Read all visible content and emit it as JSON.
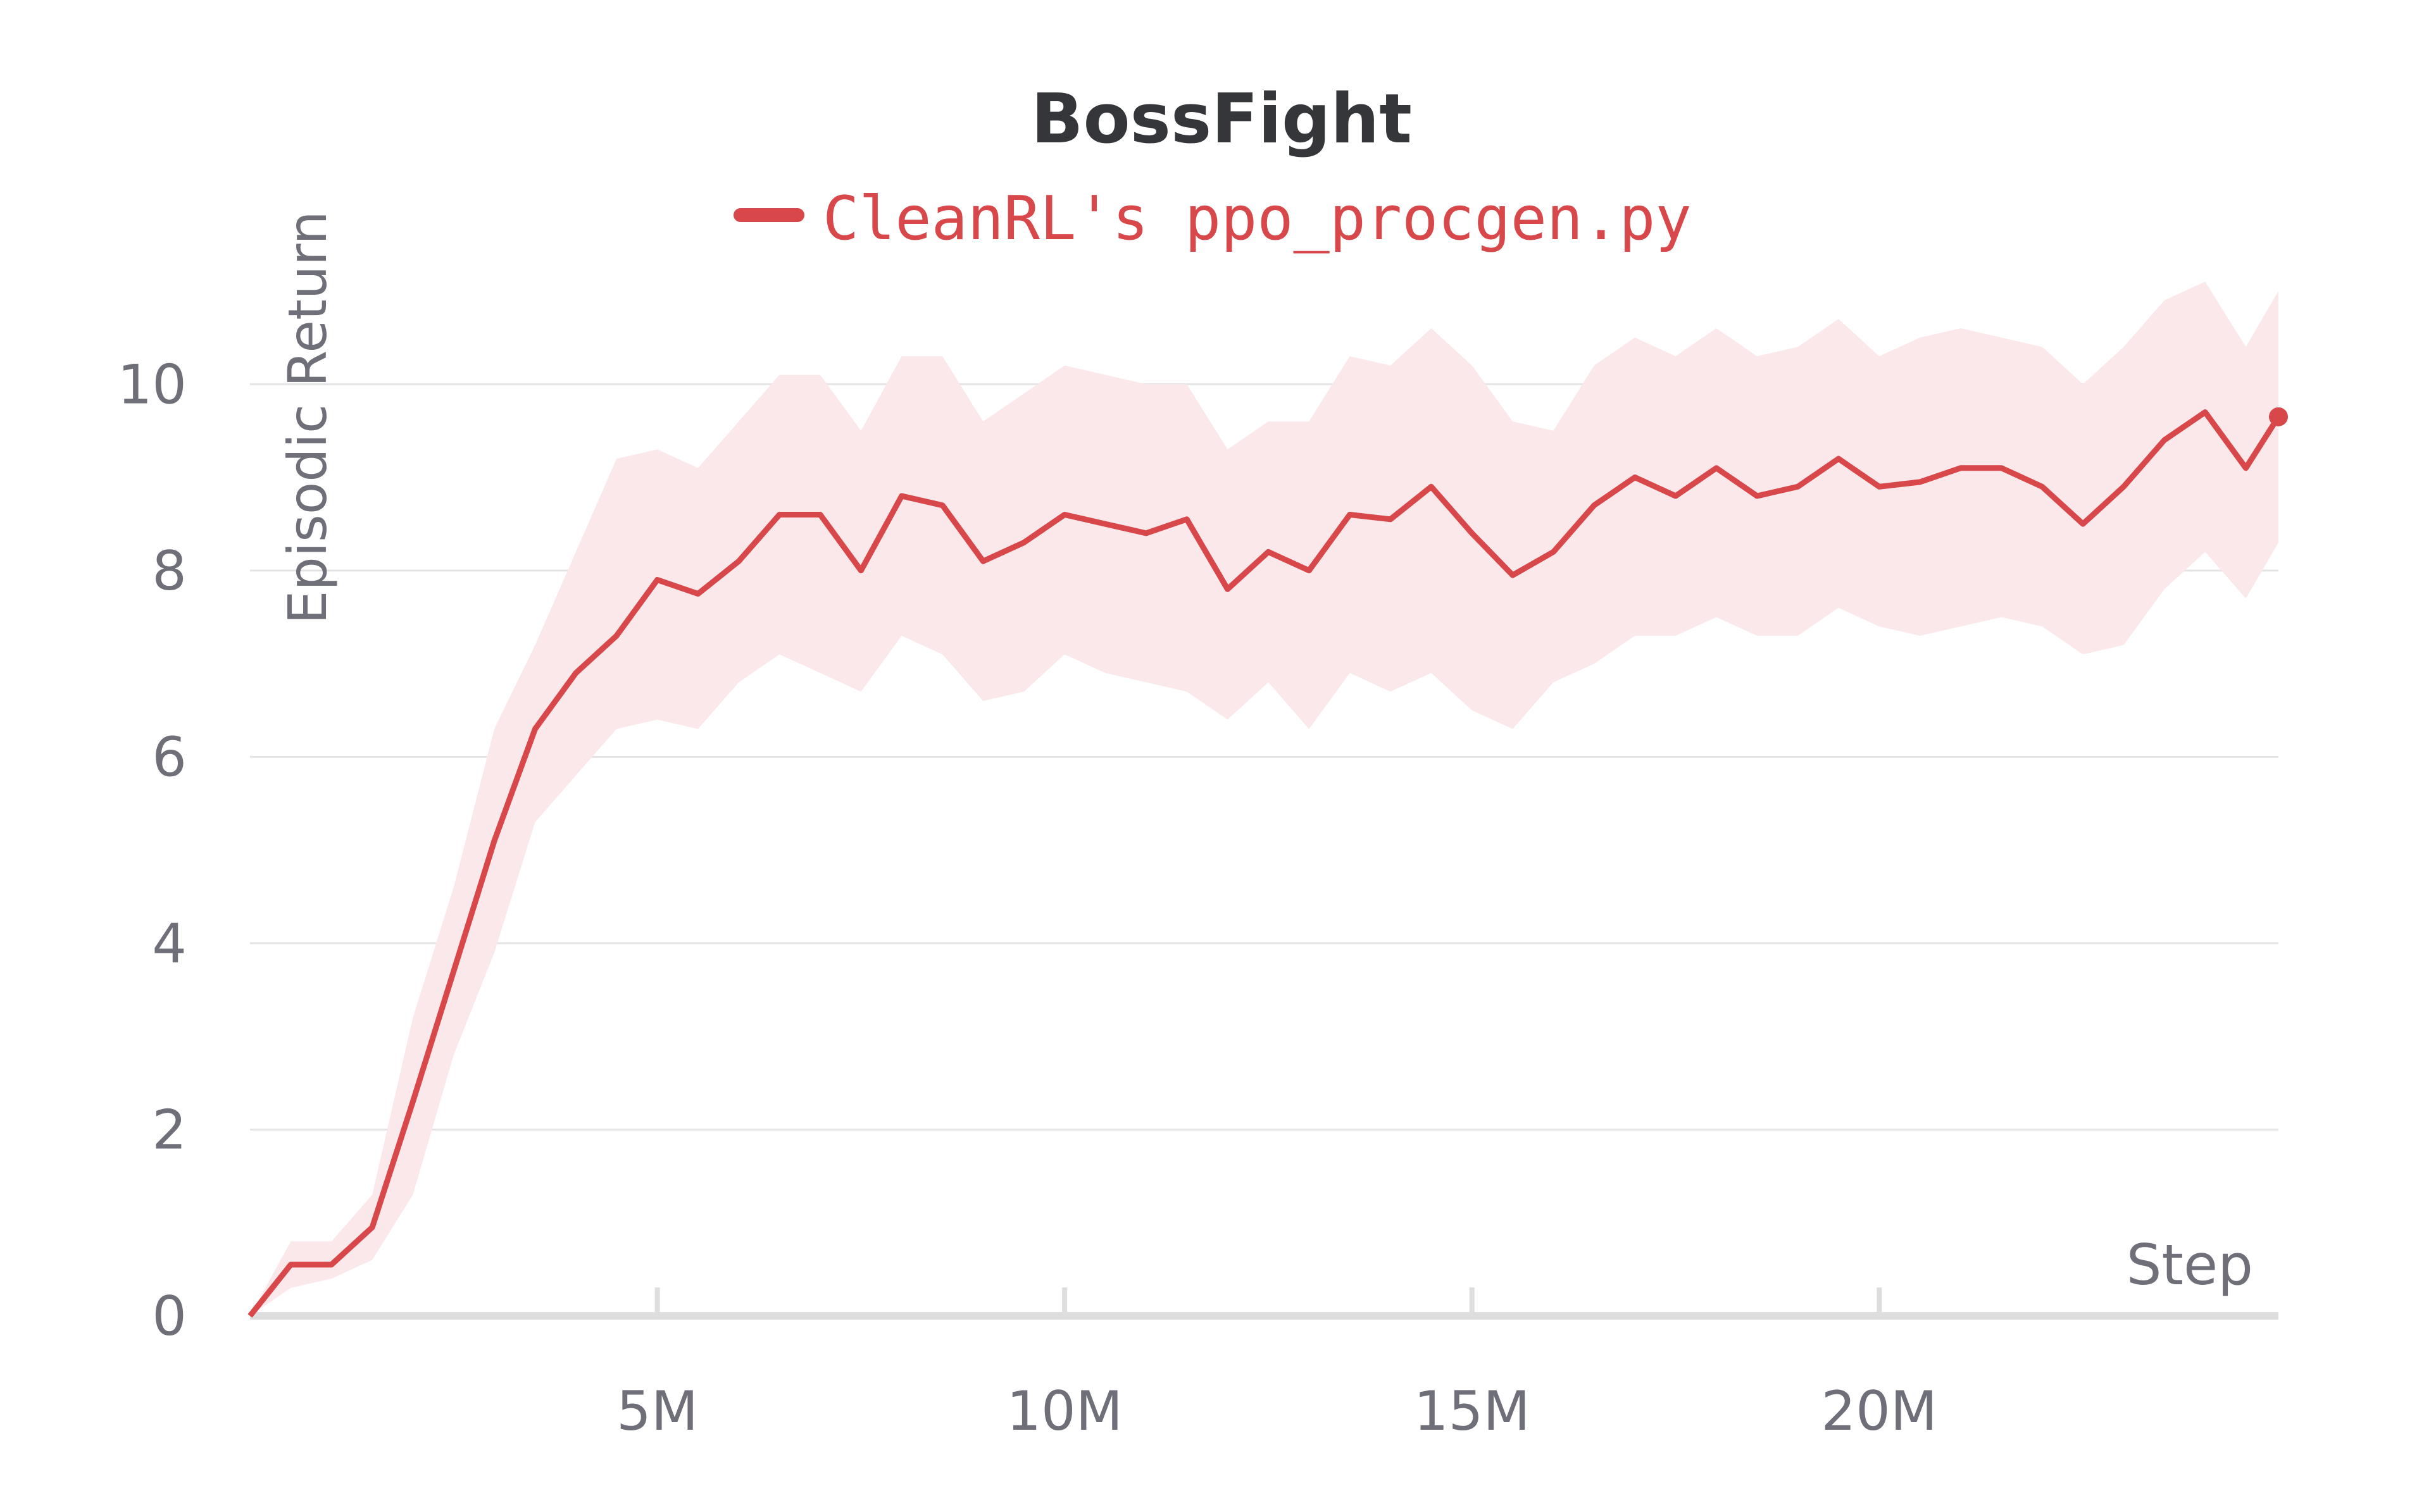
{
  "chart_data": {
    "type": "line",
    "title": "BossFight",
    "xlabel": "Step",
    "ylabel": "Episodic Return",
    "xlim": [
      0,
      24900000
    ],
    "ylim": [
      0,
      11
    ],
    "x_tick_values": [
      5000000,
      10000000,
      15000000,
      20000000
    ],
    "x_tick_labels": [
      "5M",
      "10M",
      "15M",
      "20M"
    ],
    "y_ticks": [
      0,
      2,
      4,
      6,
      8,
      10
    ],
    "grid": "horizontal",
    "legend_position": "top-center",
    "colors": {
      "line": "#d8474a",
      "band": "#fbe8ea",
      "grid": "#e4e4e6",
      "axis": "#dedede",
      "text": "#6e6f78",
      "title": "#35363a"
    },
    "series": [
      {
        "name": "CleanRL's ppo_procgen.py",
        "x": [
          0,
          500000,
          1000000,
          1500000,
          2000000,
          2500000,
          3000000,
          3500000,
          4000000,
          4500000,
          5000000,
          5500000,
          6000000,
          6500000,
          7000000,
          7500000,
          8000000,
          8500000,
          9000000,
          9500000,
          10000000,
          10500000,
          11000000,
          11500000,
          12000000,
          12500000,
          13000000,
          13500000,
          14000000,
          14500000,
          15000000,
          15500000,
          16000000,
          16500000,
          17000000,
          17500000,
          18000000,
          18500000,
          19000000,
          19500000,
          20000000,
          20500000,
          21000000,
          21500000,
          22000000,
          22500000,
          23000000,
          23500000,
          24000000,
          24500000,
          24900000
        ],
        "y": [
          0.0,
          0.55,
          0.55,
          0.95,
          2.3,
          3.7,
          5.1,
          6.3,
          6.9,
          7.3,
          7.9,
          7.75,
          8.1,
          8.6,
          8.6,
          8.0,
          8.8,
          8.7,
          8.1,
          8.3,
          8.6,
          8.5,
          8.4,
          8.55,
          7.8,
          8.2,
          8.0,
          8.6,
          8.55,
          8.9,
          8.4,
          7.95,
          8.2,
          8.7,
          9.0,
          8.8,
          9.1,
          8.8,
          8.9,
          9.2,
          8.9,
          8.95,
          9.1,
          9.1,
          8.9,
          8.5,
          8.9,
          9.4,
          9.7,
          9.1,
          9.65
        ],
        "lower": [
          0.0,
          0.3,
          0.4,
          0.6,
          1.3,
          2.8,
          3.9,
          5.3,
          5.8,
          6.3,
          6.4,
          6.3,
          6.8,
          7.1,
          6.9,
          6.7,
          7.3,
          7.1,
          6.6,
          6.7,
          7.1,
          6.9,
          6.8,
          6.7,
          6.4,
          6.8,
          6.3,
          6.9,
          6.7,
          6.9,
          6.5,
          6.3,
          6.8,
          7.0,
          7.3,
          7.3,
          7.5,
          7.3,
          7.3,
          7.6,
          7.4,
          7.3,
          7.4,
          7.5,
          7.4,
          7.1,
          7.2,
          7.8,
          8.2,
          7.7,
          8.3
        ],
        "upper": [
          0.0,
          0.8,
          0.8,
          1.3,
          3.2,
          4.6,
          6.3,
          7.2,
          8.2,
          9.2,
          9.3,
          9.1,
          9.6,
          10.1,
          10.1,
          9.5,
          10.3,
          10.3,
          9.6,
          9.9,
          10.2,
          10.1,
          10.0,
          10.0,
          9.3,
          9.6,
          9.6,
          10.3,
          10.2,
          10.6,
          10.2,
          9.6,
          9.5,
          10.2,
          10.5,
          10.3,
          10.6,
          10.3,
          10.4,
          10.7,
          10.3,
          10.5,
          10.6,
          10.5,
          10.4,
          10.0,
          10.4,
          10.9,
          11.1,
          10.4,
          11.0
        ]
      }
    ]
  }
}
